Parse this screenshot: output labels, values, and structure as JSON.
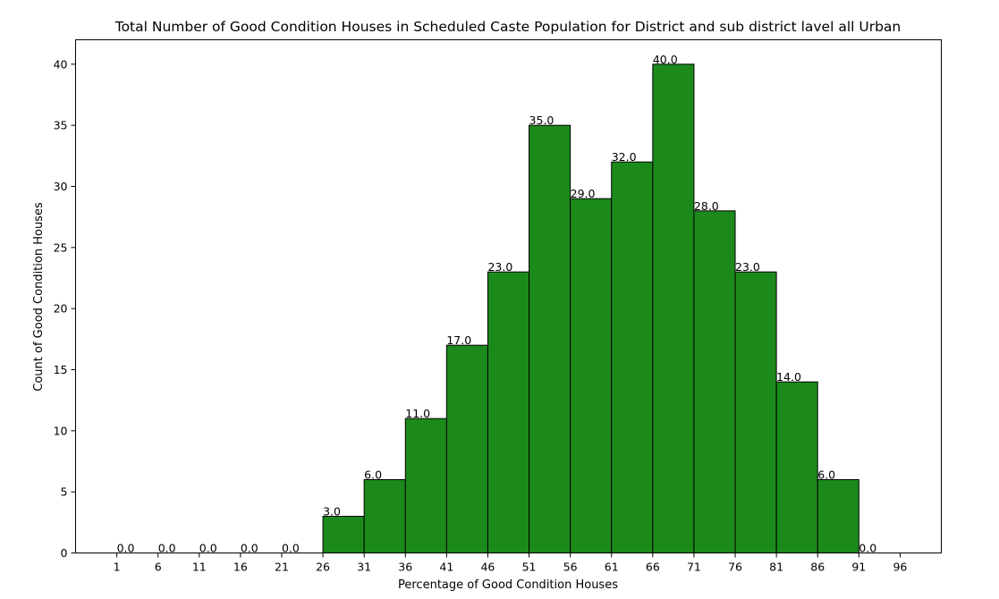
{
  "chart_data": {
    "type": "bar",
    "title": "Total Number of Good Condition Houses in Scheduled Caste Population for District and sub district lavel all Urban",
    "xlabel": "Percentage of Good Condition Houses",
    "ylabel": "Count of Good Condition Houses",
    "bin_width": 5,
    "bins": [
      {
        "start": 1,
        "value": 0,
        "label": "0.0"
      },
      {
        "start": 6,
        "value": 0,
        "label": "0.0"
      },
      {
        "start": 11,
        "value": 0,
        "label": "0.0"
      },
      {
        "start": 16,
        "value": 0,
        "label": "0.0"
      },
      {
        "start": 21,
        "value": 0,
        "label": "0.0"
      },
      {
        "start": 26,
        "value": 3,
        "label": "3.0"
      },
      {
        "start": 31,
        "value": 6,
        "label": "6.0"
      },
      {
        "start": 36,
        "value": 11,
        "label": "11.0"
      },
      {
        "start": 41,
        "value": 17,
        "label": "17.0"
      },
      {
        "start": 46,
        "value": 23,
        "label": "23.0"
      },
      {
        "start": 51,
        "value": 35,
        "label": "35.0"
      },
      {
        "start": 56,
        "value": 29,
        "label": "29.0"
      },
      {
        "start": 61,
        "value": 32,
        "label": "32.0"
      },
      {
        "start": 66,
        "value": 40,
        "label": "40.0"
      },
      {
        "start": 71,
        "value": 28,
        "label": "28.0"
      },
      {
        "start": 76,
        "value": 23,
        "label": "23.0"
      },
      {
        "start": 81,
        "value": 14,
        "label": "14.0"
      },
      {
        "start": 86,
        "value": 6,
        "label": "6.0"
      },
      {
        "start": 91,
        "value": 0,
        "label": "0.0"
      }
    ],
    "xticks": [
      "1",
      "6",
      "11",
      "16",
      "21",
      "26",
      "31",
      "36",
      "41",
      "46",
      "51",
      "56",
      "61",
      "66",
      "71",
      "76",
      "81",
      "86",
      "91",
      "96"
    ],
    "yticks": [
      "0",
      "5",
      "10",
      "15",
      "20",
      "25",
      "30",
      "35",
      "40"
    ],
    "xlim": [
      -4,
      101
    ],
    "ylim": [
      0,
      42
    ],
    "bar_color": "#1b8a1b",
    "edge_color": "#000000",
    "grid": false
  }
}
